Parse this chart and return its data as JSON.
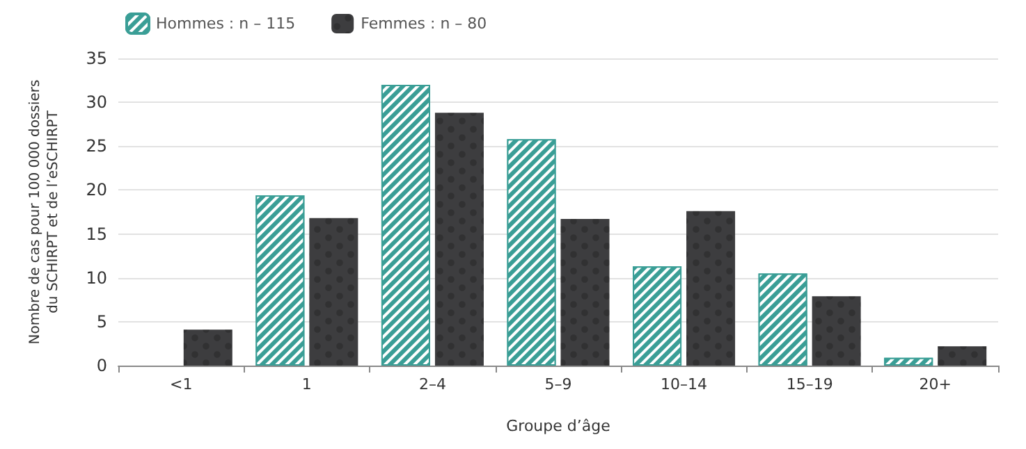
{
  "chart_data": {
    "type": "bar",
    "xlabel": "Groupe d’âge",
    "ylabel": "Nombre de cas pour 100 000 dossiers\ndu SCHIRPT et de l’eSCHIRPT",
    "categories": [
      "<1",
      "1",
      "2–4",
      "5–9",
      "10–14",
      "15–19",
      "20+"
    ],
    "series": [
      {
        "name": "Hommes : n – 115",
        "color": "#3a9e96",
        "values": [
          null,
          19.4,
          32.0,
          25.8,
          11.3,
          10.5,
          0.9
        ]
      },
      {
        "name": "Femmes : n – 80",
        "color": "#3d3d3f",
        "values": [
          4.1,
          16.8,
          28.8,
          16.7,
          17.6,
          7.9,
          2.2
        ]
      }
    ],
    "ylim": [
      0,
      35
    ],
    "yticks": [
      0,
      5,
      10,
      15,
      20,
      25,
      30,
      35
    ],
    "grid": "y",
    "legend": "top left"
  }
}
